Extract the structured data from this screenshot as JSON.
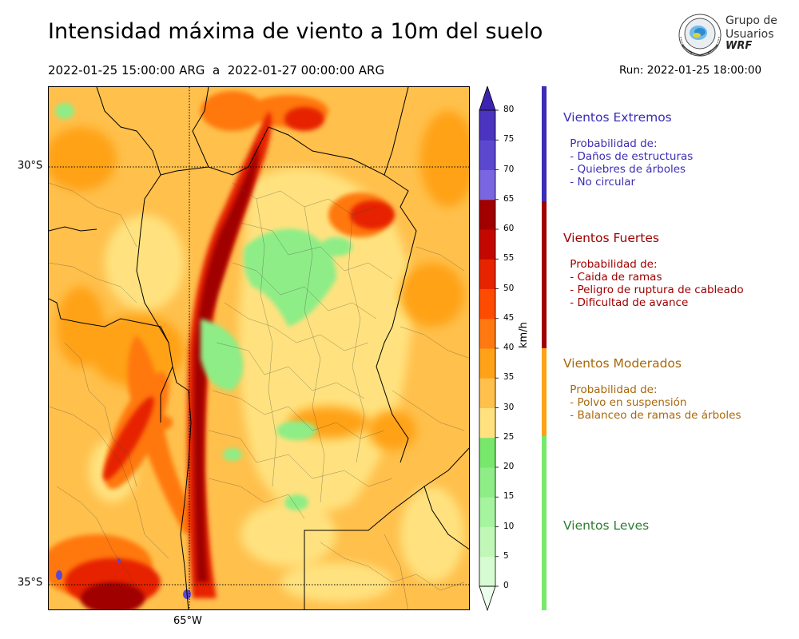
{
  "title": "Intensidad máxima de viento a 10m del suelo",
  "period": {
    "start": "2022-01-25 15:00:00 ARG",
    "separator": "a",
    "end": "2022-01-27 00:00:00 ARG"
  },
  "run": "Run: 2022-01-25 18:00:00",
  "logo": {
    "line1": "Grupo de",
    "line2": "Usuarios",
    "line3": "WRF"
  },
  "map": {
    "lat_labels": [
      "30°S",
      "35°S"
    ],
    "lon_labels": [
      "65°W"
    ]
  },
  "colorbar": {
    "unit": "km/h",
    "ticks": [
      "0",
      "5",
      "10",
      "15",
      "20",
      "25",
      "30",
      "35",
      "40",
      "45",
      "50",
      "55",
      "60",
      "65",
      "70",
      "75",
      "80"
    ],
    "colors": [
      "#ebfdeb",
      "#d7fbd2",
      "#c1f8b8",
      "#a6f3a0",
      "#8eed86",
      "#78e86d",
      "#ffe27f",
      "#ffc04c",
      "#ffa218",
      "#ff7810",
      "#ff4b00",
      "#e62400",
      "#c20800",
      "#a00000",
      "#7a66e0",
      "#5b48cf",
      "#4b34bf",
      "#3d24b0"
    ]
  },
  "categories": [
    {
      "title": "Vientos Extremos",
      "color": "#3c2db4",
      "desc": " Probabilidad de:\n - Daños de estructuras\n - Quiebres de árboles\n - No circular"
    },
    {
      "title": "Vientos Fuertes",
      "color": "#a00000",
      "desc": " Probabilidad de:\n - Caida de ramas\n - Peligro de ruptura de cableado\n - Dificultad de avance"
    },
    {
      "title": "Vientos Moderados",
      "color": "#a8680a",
      "bar_color": "#ffa218",
      "desc": " Probabilidad de:\n - Polvo en suspensión\n - Balanceo de ramas de árboles"
    },
    {
      "title": "Vientos Leves",
      "color": "#2e7d32",
      "bar_color": "#78e86d",
      "desc": ""
    }
  ]
}
